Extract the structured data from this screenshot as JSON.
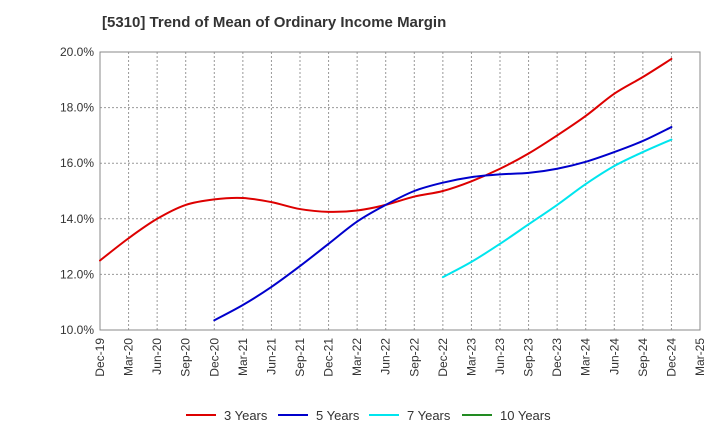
{
  "chart_data": {
    "type": "line",
    "title": "[5310]  Trend of Mean of Ordinary Income Margin",
    "xlabel": "",
    "ylabel": "",
    "x": [
      "Dec-19",
      "Mar-20",
      "Jun-20",
      "Sep-20",
      "Dec-20",
      "Mar-21",
      "Jun-21",
      "Sep-21",
      "Dec-21",
      "Mar-22",
      "Jun-22",
      "Sep-22",
      "Dec-22",
      "Mar-23",
      "Jun-23",
      "Sep-23",
      "Dec-23",
      "Mar-24",
      "Jun-24",
      "Sep-24",
      "Dec-24",
      "Mar-25"
    ],
    "y_ticks": [
      "10.0%",
      "12.0%",
      "14.0%",
      "16.0%",
      "18.0%",
      "20.0%"
    ],
    "ylim": [
      10,
      20
    ],
    "grid": true,
    "legend_position": "bottom",
    "series": [
      {
        "name": "3 Years",
        "color": "#dd0000",
        "values": [
          12.5,
          13.3,
          14.0,
          14.5,
          14.7,
          14.75,
          14.6,
          14.35,
          14.25,
          14.3,
          14.5,
          14.8,
          15.0,
          15.35,
          15.8,
          16.35,
          17.0,
          17.7,
          18.5,
          19.1,
          19.75,
          null
        ]
      },
      {
        "name": "5 Years",
        "color": "#0000cc",
        "values": [
          null,
          null,
          null,
          null,
          10.35,
          10.9,
          11.55,
          12.3,
          13.1,
          13.9,
          14.5,
          15.0,
          15.3,
          15.5,
          15.6,
          15.65,
          15.8,
          16.05,
          16.4,
          16.8,
          17.3,
          null
        ]
      },
      {
        "name": "7 Years",
        "color": "#00e5ee",
        "values": [
          null,
          null,
          null,
          null,
          null,
          null,
          null,
          null,
          null,
          null,
          null,
          null,
          11.9,
          12.45,
          13.1,
          13.8,
          14.5,
          15.25,
          15.9,
          16.4,
          16.85,
          null
        ]
      },
      {
        "name": "10 Years",
        "color": "#228b22",
        "values": [
          null,
          null,
          null,
          null,
          null,
          null,
          null,
          null,
          null,
          null,
          null,
          null,
          null,
          null,
          null,
          null,
          null,
          null,
          null,
          null,
          null,
          null
        ]
      }
    ]
  }
}
